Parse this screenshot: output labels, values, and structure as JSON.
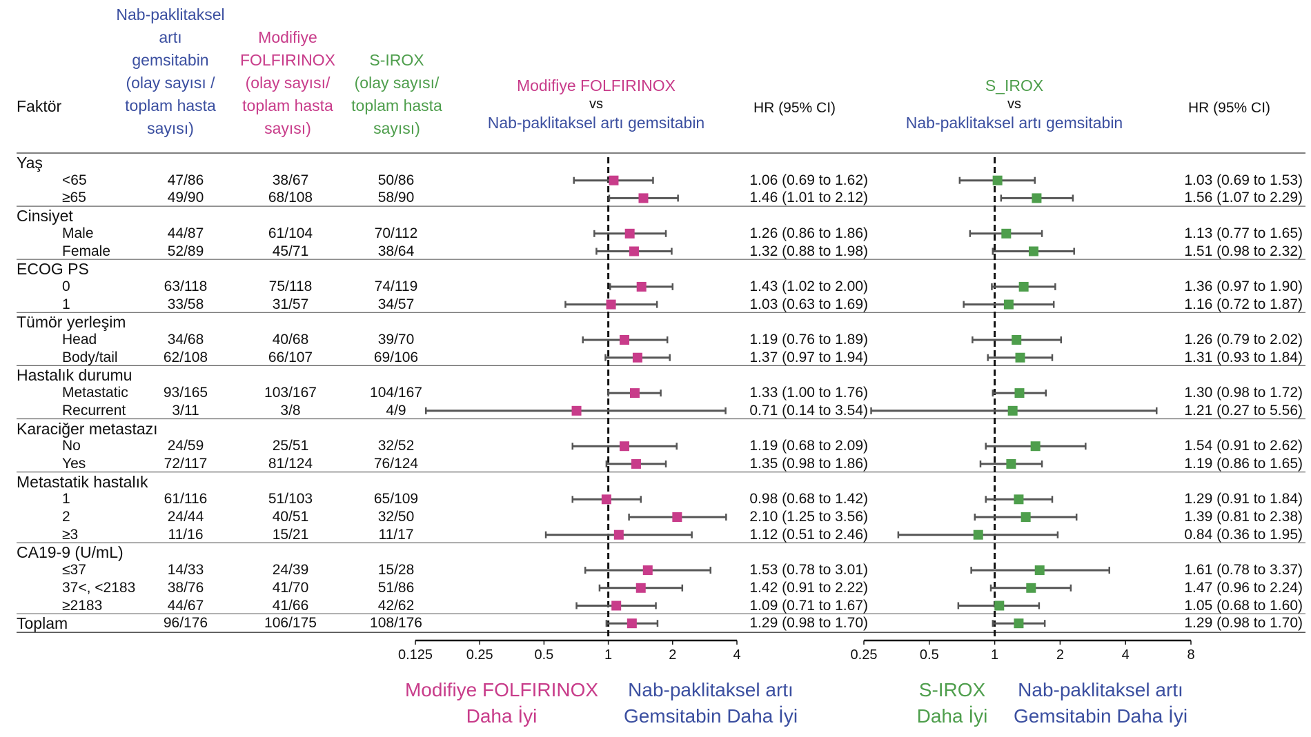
{
  "header": {
    "factor": "Faktör",
    "nab_col": [
      "Nab-paklitaksel",
      "artı",
      "gemsitabin",
      "(olay sayısı /",
      "toplam hasta",
      "sayısı)"
    ],
    "mfol_col": [
      "Modifiye",
      "FOLFIRINOX",
      "(olay sayısı/",
      "toplam hasta",
      "sayısı)"
    ],
    "sirox_col": [
      "S-IROX",
      "(olay sayısı/",
      "toplam hasta",
      "sayısı)"
    ],
    "left_plot_title": [
      "Modifiye FOLFIRINOX",
      "vs",
      "Nab-paklitaksel artı gemsitabin"
    ],
    "right_plot_title": [
      "S_IROX",
      "vs",
      "Nab-paklitaksel artı gemsitabin"
    ],
    "hr_left": "HR (95% CI)",
    "hr_right": "HR (95% CI)"
  },
  "colors": {
    "nab": "#3b4fa0",
    "mfol": "#c83c8a",
    "sirox": "#4e9e4c",
    "ci_line": "#555555"
  },
  "rows": [
    {
      "type": "group",
      "label": "Yaş"
    },
    {
      "type": "sub",
      "label": "<65",
      "nab": "47/86",
      "mfol": "38/67",
      "sirox": "50/86",
      "hr1": "1.06 (0.69 to 1.62)",
      "hr2": "1.03 (0.69 to 1.53)"
    },
    {
      "type": "sub",
      "label": "≥65",
      "nab": "49/90",
      "mfol": "68/108",
      "sirox": "58/90",
      "hr1": "1.46 (1.01 to 2.12)",
      "hr2": "1.56 (1.07 to 2.29)"
    },
    {
      "type": "group",
      "label": "Cinsiyet"
    },
    {
      "type": "sub",
      "label": "Male",
      "nab": "44/87",
      "mfol": "61/104",
      "sirox": "70/112",
      "hr1": "1.26 (0.86 to 1.86)",
      "hr2": "1.13 (0.77 to 1.65)"
    },
    {
      "type": "sub",
      "label": "Female",
      "nab": "52/89",
      "mfol": "45/71",
      "sirox": "38/64",
      "hr1": "1.32 (0.88 to 1.98)",
      "hr2": "1.51 (0.98 to 2.32)"
    },
    {
      "type": "group",
      "label": "ECOG PS"
    },
    {
      "type": "sub",
      "label": "0",
      "nab": "63/118",
      "mfol": "75/118",
      "sirox": "74/119",
      "hr1": "1.43 (1.02 to 2.00)",
      "hr2": "1.36 (0.97 to 1.90)"
    },
    {
      "type": "sub",
      "label": "1",
      "nab": "33/58",
      "mfol": "31/57",
      "sirox": "34/57",
      "hr1": "1.03 (0.63 to 1.69)",
      "hr2": "1.16 (0.72 to 1.87)"
    },
    {
      "type": "group",
      "label": "Tümör yerleşim"
    },
    {
      "type": "sub",
      "label": "Head",
      "nab": "34/68",
      "mfol": "40/68",
      "sirox": "39/70",
      "hr1": "1.19 (0.76 to 1.89)",
      "hr2": "1.26 (0.79 to 2.02)"
    },
    {
      "type": "sub",
      "label": "Body/tail",
      "nab": "62/108",
      "mfol": "66/107",
      "sirox": "69/106",
      "hr1": "1.37 (0.97 to 1.94)",
      "hr2": "1.31 (0.93 to 1.84)"
    },
    {
      "type": "group",
      "label": "Hastalık durumu"
    },
    {
      "type": "sub",
      "label": "Metastatic",
      "nab": "93/165",
      "mfol": "103/167",
      "sirox": "104/167",
      "hr1": "1.33 (1.00 to 1.76)",
      "hr2": "1.30 (0.98 to 1.72)"
    },
    {
      "type": "sub",
      "label": "Recurrent",
      "nab": "3/11",
      "mfol": "3/8",
      "sirox": "4/9",
      "hr1": "0.71 (0.14 to 3.54)",
      "hr2": "1.21 (0.27 to 5.56)"
    },
    {
      "type": "group",
      "label": "Karaciğer metastazı"
    },
    {
      "type": "sub",
      "label": "No",
      "nab": "24/59",
      "mfol": "25/51",
      "sirox": "32/52",
      "hr1": "1.19 (0.68 to 2.09)",
      "hr2": "1.54 (0.91 to 2.62)"
    },
    {
      "type": "sub",
      "label": "Yes",
      "nab": "72/117",
      "mfol": "81/124",
      "sirox": "76/124",
      "hr1": "1.35 (0.98 to 1.86)",
      "hr2": "1.19 (0.86 to 1.65)"
    },
    {
      "type": "group",
      "label": "Metastatik hastalık"
    },
    {
      "type": "sub",
      "label": "1",
      "nab": "61/116",
      "mfol": "51/103",
      "sirox": "65/109",
      "hr1": "0.98 (0.68 to 1.42)",
      "hr2": "1.29 (0.91 to 1.84)"
    },
    {
      "type": "sub",
      "label": "2",
      "nab": "24/44",
      "mfol": "40/51",
      "sirox": "32/50",
      "hr1": "2.10 (1.25 to 3.56)",
      "hr2": "1.39 (0.81 to 2.38)"
    },
    {
      "type": "sub",
      "label": "≥3",
      "nab": "11/16",
      "mfol": "15/21",
      "sirox": "11/17",
      "hr1": "1.12 (0.51 to 2.46)",
      "hr2": "0.84 (0.36 to 1.95)"
    },
    {
      "type": "group",
      "label": "CA19-9 (U/mL)"
    },
    {
      "type": "sub",
      "label": "≤37",
      "nab": "14/33",
      "mfol": "24/39",
      "sirox": "15/28",
      "hr1": "1.53 (0.78 to 3.01)",
      "hr2": "1.61 (0.78 to 3.37)"
    },
    {
      "type": "sub",
      "label": "37<, <2183",
      "nab": "38/76",
      "mfol": "41/70",
      "sirox": "51/86",
      "hr1": "1.42 (0.91 to 2.22)",
      "hr2": "1.47 (0.96 to 2.24)"
    },
    {
      "type": "sub",
      "label": "≥2183",
      "nab": "44/67",
      "mfol": "41/66",
      "sirox": "42/62",
      "hr1": "1.09 (0.71 to 1.67)",
      "hr2": "1.05 (0.68 to 1.60)"
    },
    {
      "type": "total",
      "label": "Toplam",
      "nab": "96/176",
      "mfol": "106/175",
      "sirox": "108/176",
      "hr1": "1.29 (0.98 to 1.70)",
      "hr2": "1.29 (0.98 to 1.70)"
    }
  ],
  "chart_data": [
    {
      "type": "forest",
      "title": "Modifiye FOLFIRINOX vs Nab-paklitaksel artı gemsitabin",
      "scale": "log2",
      "xlim": [
        0.125,
        4
      ],
      "ticks": [
        0.125,
        0.25,
        0.5,
        1,
        2,
        4
      ],
      "tick_labels": [
        "0.125",
        "0.25",
        "0.5",
        "1",
        "2",
        "4"
      ],
      "reference": 1,
      "left_label": [
        "Modifiye FOLFIRINOX",
        "Daha İyi"
      ],
      "right_label": [
        "Nab-paklitaksel artı",
        "Gemsitabin Daha İyi"
      ],
      "points": [
        {
          "hr": 1.06,
          "lo": 0.69,
          "hi": 1.62
        },
        {
          "hr": 1.46,
          "lo": 1.01,
          "hi": 2.12
        },
        {
          "hr": 1.26,
          "lo": 0.86,
          "hi": 1.86
        },
        {
          "hr": 1.32,
          "lo": 0.88,
          "hi": 1.98
        },
        {
          "hr": 1.43,
          "lo": 1.02,
          "hi": 2.0
        },
        {
          "hr": 1.03,
          "lo": 0.63,
          "hi": 1.69
        },
        {
          "hr": 1.19,
          "lo": 0.76,
          "hi": 1.89
        },
        {
          "hr": 1.37,
          "lo": 0.97,
          "hi": 1.94
        },
        {
          "hr": 1.33,
          "lo": 1.0,
          "hi": 1.76
        },
        {
          "hr": 0.71,
          "lo": 0.14,
          "hi": 3.54
        },
        {
          "hr": 1.19,
          "lo": 0.68,
          "hi": 2.09
        },
        {
          "hr": 1.35,
          "lo": 0.98,
          "hi": 1.86
        },
        {
          "hr": 0.98,
          "lo": 0.68,
          "hi": 1.42
        },
        {
          "hr": 2.1,
          "lo": 1.25,
          "hi": 3.56
        },
        {
          "hr": 1.12,
          "lo": 0.51,
          "hi": 2.46
        },
        {
          "hr": 1.53,
          "lo": 0.78,
          "hi": 3.01
        },
        {
          "hr": 1.42,
          "lo": 0.91,
          "hi": 2.22
        },
        {
          "hr": 1.09,
          "lo": 0.71,
          "hi": 1.67
        },
        {
          "hr": 1.29,
          "lo": 0.98,
          "hi": 1.7
        }
      ]
    },
    {
      "type": "forest",
      "title": "S_IROX vs Nab-paklitaksel artı gemsitabin",
      "scale": "log2",
      "xlim": [
        0.25,
        8
      ],
      "ticks": [
        0.25,
        0.5,
        1,
        2,
        4,
        8
      ],
      "tick_labels": [
        "0.25",
        "0.5",
        "1",
        "2",
        "4",
        "8"
      ],
      "reference": 1,
      "left_label": [
        "S-IROX",
        "Daha İyi"
      ],
      "right_label": [
        "Nab-paklitaksel artı",
        "Gemsitabin Daha İyi"
      ],
      "points": [
        {
          "hr": 1.03,
          "lo": 0.69,
          "hi": 1.53
        },
        {
          "hr": 1.56,
          "lo": 1.07,
          "hi": 2.29
        },
        {
          "hr": 1.13,
          "lo": 0.77,
          "hi": 1.65
        },
        {
          "hr": 1.51,
          "lo": 0.98,
          "hi": 2.32
        },
        {
          "hr": 1.36,
          "lo": 0.97,
          "hi": 1.9
        },
        {
          "hr": 1.16,
          "lo": 0.72,
          "hi": 1.87
        },
        {
          "hr": 1.26,
          "lo": 0.79,
          "hi": 2.02
        },
        {
          "hr": 1.31,
          "lo": 0.93,
          "hi": 1.84
        },
        {
          "hr": 1.3,
          "lo": 0.98,
          "hi": 1.72
        },
        {
          "hr": 1.21,
          "lo": 0.27,
          "hi": 5.56
        },
        {
          "hr": 1.54,
          "lo": 0.91,
          "hi": 2.62
        },
        {
          "hr": 1.19,
          "lo": 0.86,
          "hi": 1.65
        },
        {
          "hr": 1.29,
          "lo": 0.91,
          "hi": 1.84
        },
        {
          "hr": 1.39,
          "lo": 0.81,
          "hi": 2.38
        },
        {
          "hr": 0.84,
          "lo": 0.36,
          "hi": 1.95
        },
        {
          "hr": 1.61,
          "lo": 0.78,
          "hi": 3.37
        },
        {
          "hr": 1.47,
          "lo": 0.96,
          "hi": 2.24
        },
        {
          "hr": 1.05,
          "lo": 0.68,
          "hi": 1.6
        },
        {
          "hr": 1.29,
          "lo": 0.98,
          "hi": 1.7
        }
      ]
    }
  ]
}
